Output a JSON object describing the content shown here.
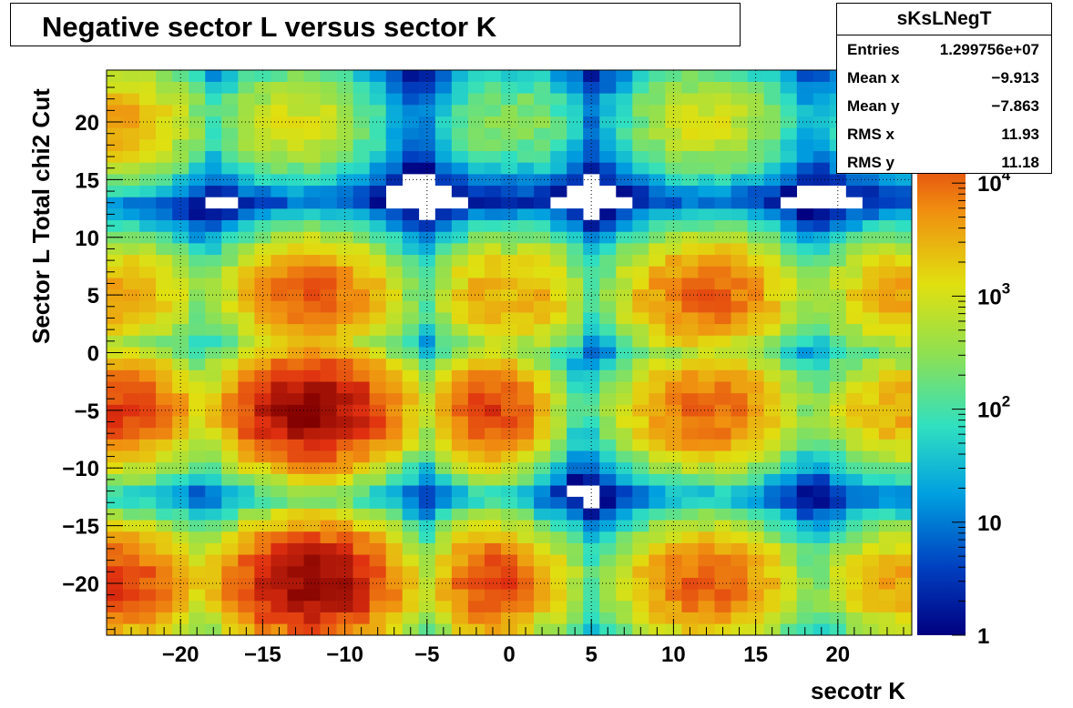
{
  "title": "Negative sector L versus sector K",
  "stats": {
    "name": "sKsLNegT",
    "rows": [
      {
        "label": "Entries",
        "value": "1.299756e+07"
      },
      {
        "label": "Mean x",
        "value": "−9.913"
      },
      {
        "label": "Mean y",
        "value": "−7.863"
      },
      {
        "label": "RMS x",
        "value": "11.93"
      },
      {
        "label": "RMS y",
        "value": "11.18"
      }
    ]
  },
  "chart_data": {
    "type": "heatmap",
    "title": "Negative sector L versus sector K",
    "xlabel": "secotr K",
    "ylabel": "Sector L  Total chi2 Cut",
    "xlim": [
      -24.5,
      24.5
    ],
    "ylim": [
      -24.5,
      24.5
    ],
    "x_ticks": [
      -20,
      -15,
      -10,
      -5,
      0,
      5,
      10,
      15,
      20
    ],
    "x_tick_labels": [
      "−20",
      "−15",
      "−10",
      "−5",
      "0",
      "5",
      "10",
      "15",
      "20"
    ],
    "y_ticks": [
      -20,
      -15,
      -10,
      -5,
      0,
      5,
      10,
      15,
      20
    ],
    "y_tick_labels": [
      "−20",
      "−15",
      "−10",
      "−5",
      "0",
      "5",
      "10",
      "15",
      "20"
    ],
    "grid": true,
    "z_scale": "log",
    "zlim": [
      1,
      100000
    ],
    "z_ticks": [
      {
        "value": 1,
        "label": "1",
        "sup": ""
      },
      {
        "value": 10,
        "label": "10",
        "sup": ""
      },
      {
        "value": 100,
        "label": "10",
        "sup": "2"
      },
      {
        "value": 1000,
        "label": "10",
        "sup": "3"
      },
      {
        "value": 10000,
        "label": "10",
        "sup": "4"
      }
    ],
    "peak_counts": {
      "band_outer": 80000,
      "band_mid": 12000,
      "band_top": 1200,
      "edge_outer": 20000,
      "edge_mid": 4000,
      "edge_top": 300
    },
    "clusters": [
      {
        "x": -13,
        "y": 20,
        "band": "band_top"
      },
      {
        "x": 12,
        "y": 20,
        "band": "band_top"
      },
      {
        "x": -12,
        "y": 5,
        "band": "band_mid"
      },
      {
        "x": 12,
        "y": 5,
        "band": "band_mid"
      },
      {
        "x": -12,
        "y": -5,
        "band": "band_outer"
      },
      {
        "x": 12,
        "y": -5,
        "band": "band_mid"
      },
      {
        "x": -12,
        "y": -20,
        "band": "band_outer"
      },
      {
        "x": 12,
        "y": -20,
        "band": "band_mid"
      },
      {
        "x": -24,
        "y": 20,
        "band": "edge_mid"
      },
      {
        "x": -24,
        "y": 5,
        "band": "edge_mid"
      },
      {
        "x": -24,
        "y": -5,
        "band": "edge_outer"
      },
      {
        "x": -24,
        "y": -20,
        "band": "edge_outer"
      },
      {
        "x": 24,
        "y": 20,
        "band": "edge_top"
      },
      {
        "x": 24,
        "y": 5,
        "band": "edge_mid"
      },
      {
        "x": 24,
        "y": -5,
        "band": "edge_mid"
      },
      {
        "x": 24,
        "y": -20,
        "band": "edge_mid"
      },
      {
        "x": -1,
        "y": 20,
        "band": "edge_top"
      },
      {
        "x": 1,
        "y": 20,
        "band": "edge_top"
      },
      {
        "x": -1,
        "y": 5,
        "band": "edge_mid"
      },
      {
        "x": 1,
        "y": 5,
        "band": "edge_mid"
      },
      {
        "x": -1,
        "y": -5,
        "band": "edge_outer"
      },
      {
        "x": 1,
        "y": -5,
        "band": "edge_top"
      },
      {
        "x": -1,
        "y": -20,
        "band": "edge_outer"
      },
      {
        "x": 1,
        "y": -20,
        "band": "edge_mid"
      }
    ]
  }
}
